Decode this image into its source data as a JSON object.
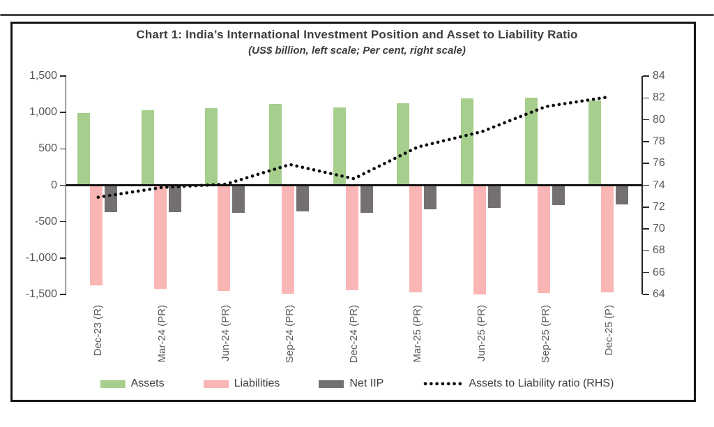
{
  "title": "Chart 1: India’s International Investment Position and Asset to Liability Ratio",
  "subtitle": "(US$ billion, left scale; Per cent, right scale)",
  "chart_data": {
    "type": "bar",
    "combo": "clustered-bar with dotted line on secondary axis",
    "grid": false,
    "legend_position": "bottom",
    "categories": [
      "Dec-23 (R)",
      "Mar-24 (PR)",
      "Jun-24 (PR)",
      "Sep-24 (PR)",
      "Dec-24 (PR)",
      "Mar-25 (PR)",
      "Jun-25 (PR)",
      "Sep-25 (PR)",
      "Dec-25 (P)"
    ],
    "series": [
      {
        "name": "Assets",
        "slug": "assets",
        "type": "bar",
        "axis": "left",
        "color": "#a6ce8c",
        "values": [
          990,
          1035,
          1060,
          1115,
          1070,
          1130,
          1190,
          1200,
          1165
        ]
      },
      {
        "name": "Liabilities",
        "slug": "liabilities",
        "type": "bar",
        "axis": "left",
        "color": "#f9b6b4",
        "values": [
          -1380,
          -1420,
          -1450,
          -1495,
          -1440,
          -1470,
          -1500,
          -1480,
          -1470
        ]
      },
      {
        "name": "Net IIP",
        "slug": "net-iip",
        "type": "bar",
        "axis": "left",
        "color": "#757070",
        "values": [
          -370,
          -365,
          -375,
          -360,
          -375,
          -330,
          -315,
          -275,
          -265
        ]
      },
      {
        "name": "Assets to Liability ratio (RHS)",
        "slug": "ratio",
        "type": "line",
        "style": "dotted",
        "axis": "right",
        "color": "#0d0d0d",
        "values": [
          72.9,
          73.8,
          74.1,
          75.9,
          74.6,
          77.5,
          78.9,
          81.2,
          82.1
        ]
      }
    ],
    "left_axis": {
      "label": "US$ billion",
      "min": -1500,
      "max": 1500,
      "step": 500,
      "ticks": [
        "1,500",
        "1,000",
        "500",
        "0",
        "-500",
        "-1,000",
        "-1,500"
      ]
    },
    "right_axis": {
      "label": "Per cent",
      "min": 64,
      "max": 84,
      "step": 2,
      "ticks": [
        "84",
        "82",
        "80",
        "78",
        "76",
        "74",
        "72",
        "70",
        "68",
        "66",
        "64"
      ]
    }
  },
  "legend": {
    "items": [
      "Assets",
      "Liabilities",
      "Net IIP",
      "Assets to Liability ratio (RHS)"
    ]
  }
}
